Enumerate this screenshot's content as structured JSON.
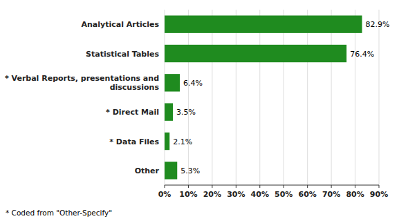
{
  "chart_data": {
    "type": "bar",
    "orientation": "horizontal",
    "categories": [
      "Other",
      "* Data Files",
      "* Direct Mail",
      "* Verbal Reports, presentations and\n     discussions",
      "Statistical Tables",
      "Analytical Articles"
    ],
    "values": [
      5.3,
      2.1,
      3.5,
      6.4,
      76.4,
      82.9
    ],
    "value_labels": [
      "5.3%",
      "2.1%",
      "3.5%",
      "6.4%",
      "76.4%",
      "82.9%"
    ],
    "data_labels": true,
    "color": "#1f8b1f",
    "xlim": [
      0,
      90
    ],
    "xticks": [
      {
        "value": 0,
        "label": "0%"
      },
      {
        "value": 10,
        "label": "10%"
      },
      {
        "value": 20,
        "label": "20%"
      },
      {
        "value": 30,
        "label": "30%"
      },
      {
        "value": 40,
        "label": "40%"
      },
      {
        "value": 50,
        "label": "50%"
      },
      {
        "value": 60,
        "label": "60%"
      },
      {
        "value": 70,
        "label": "70%"
      },
      {
        "value": 80,
        "label": "80%"
      },
      {
        "value": 90,
        "label": "90%"
      }
    ],
    "grid": true,
    "annotations": [
      "* Coded from \"Other-Specify\""
    ]
  }
}
